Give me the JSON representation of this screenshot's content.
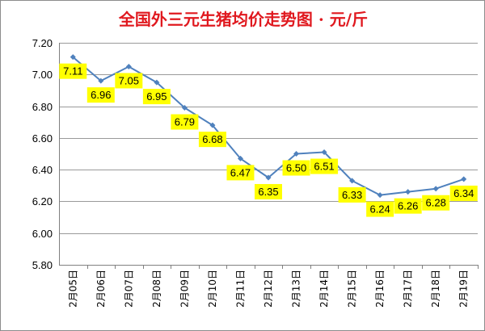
{
  "chart_data": {
    "type": "line",
    "title": "全国外三元生猪均价走势图 · 元/斤",
    "xlabel": "",
    "ylabel": "",
    "categories": [
      "2月05日",
      "2月06日",
      "2月07日",
      "2月08日",
      "2月09日",
      "2月10日",
      "2月11日",
      "2月12日",
      "2月13日",
      "2月14日",
      "2月15日",
      "2月16日",
      "2月17日",
      "2月18日",
      "2月19日"
    ],
    "series": [
      {
        "name": "",
        "values": [
          7.11,
          6.96,
          7.05,
          6.95,
          6.79,
          6.68,
          6.47,
          6.35,
          6.5,
          6.51,
          6.33,
          6.24,
          6.26,
          6.28,
          6.34
        ]
      }
    ],
    "data_labels": [
      "7.11",
      "6.96",
      "7.05",
      "6.95",
      "6.79",
      "6.68",
      "6.47",
      "6.35",
      "6.50",
      "6.51",
      "6.33",
      "6.24",
      "6.26",
      "6.28",
      "6.34"
    ],
    "y_ticks": [
      "5.80",
      "6.00",
      "6.20",
      "6.40",
      "6.60",
      "6.80",
      "7.00",
      "7.20"
    ],
    "ylim": [
      5.8,
      7.2
    ],
    "grid": "horizontal",
    "legend": "none",
    "colors": {
      "line": "#4f81bd",
      "marker": "#4f81bd",
      "label_bg": "#ffff00",
      "grid": "#9a9a9a",
      "title": "#e0191f"
    }
  }
}
